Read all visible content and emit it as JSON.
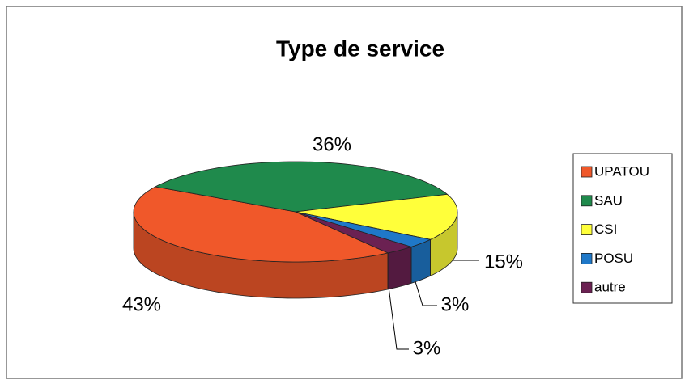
{
  "chart_data": {
    "type": "pie",
    "title": "Type de service",
    "categories": [
      "UPATOU",
      "SAU",
      "CSI",
      "POSU",
      "autre"
    ],
    "values": [
      43,
      36,
      15,
      3,
      3
    ],
    "value_labels": [
      "43%",
      "36%",
      "15%",
      "3%",
      "3%"
    ],
    "colors": [
      "#f0582a",
      "#1f8a4c",
      "#ffff3a",
      "#1f78c8",
      "#6b2152"
    ],
    "legend": "right"
  }
}
